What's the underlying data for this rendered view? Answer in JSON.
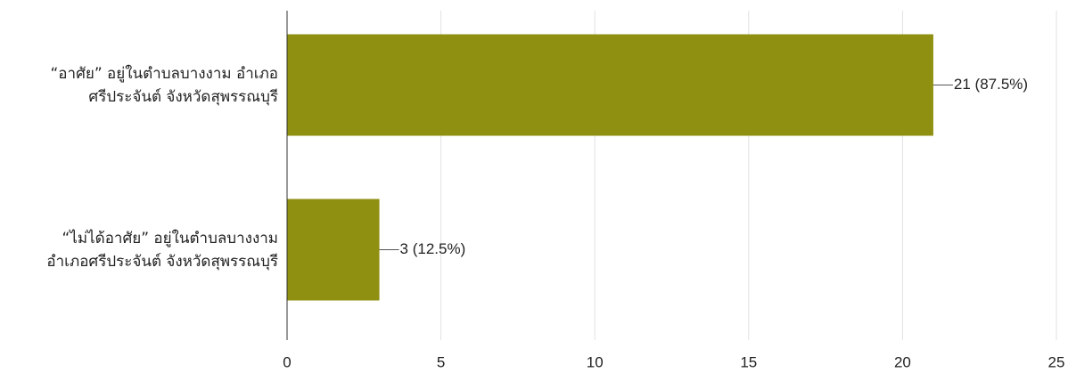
{
  "chart_data": {
    "type": "bar",
    "orientation": "horizontal",
    "categories": [
      "“อาศัย” อยู่ในตำบลบางงาม อำเภอ\nศรีประจันต์ จังหวัดสุพรรณบุรี",
      "“ไม่ได้อาศัย” อยู่ในตำบลบางงาม\nอำเภอศรีประจันต์ จังหวัดสุพรรณบุรี"
    ],
    "values": [
      21,
      3
    ],
    "value_labels": [
      "21 (87.5%)",
      "3 (12.5%)"
    ],
    "color": "#8f8f12",
    "xlim": [
      0,
      25
    ],
    "xticks": [
      0,
      5,
      10,
      15,
      20,
      25
    ],
    "grid": true
  }
}
